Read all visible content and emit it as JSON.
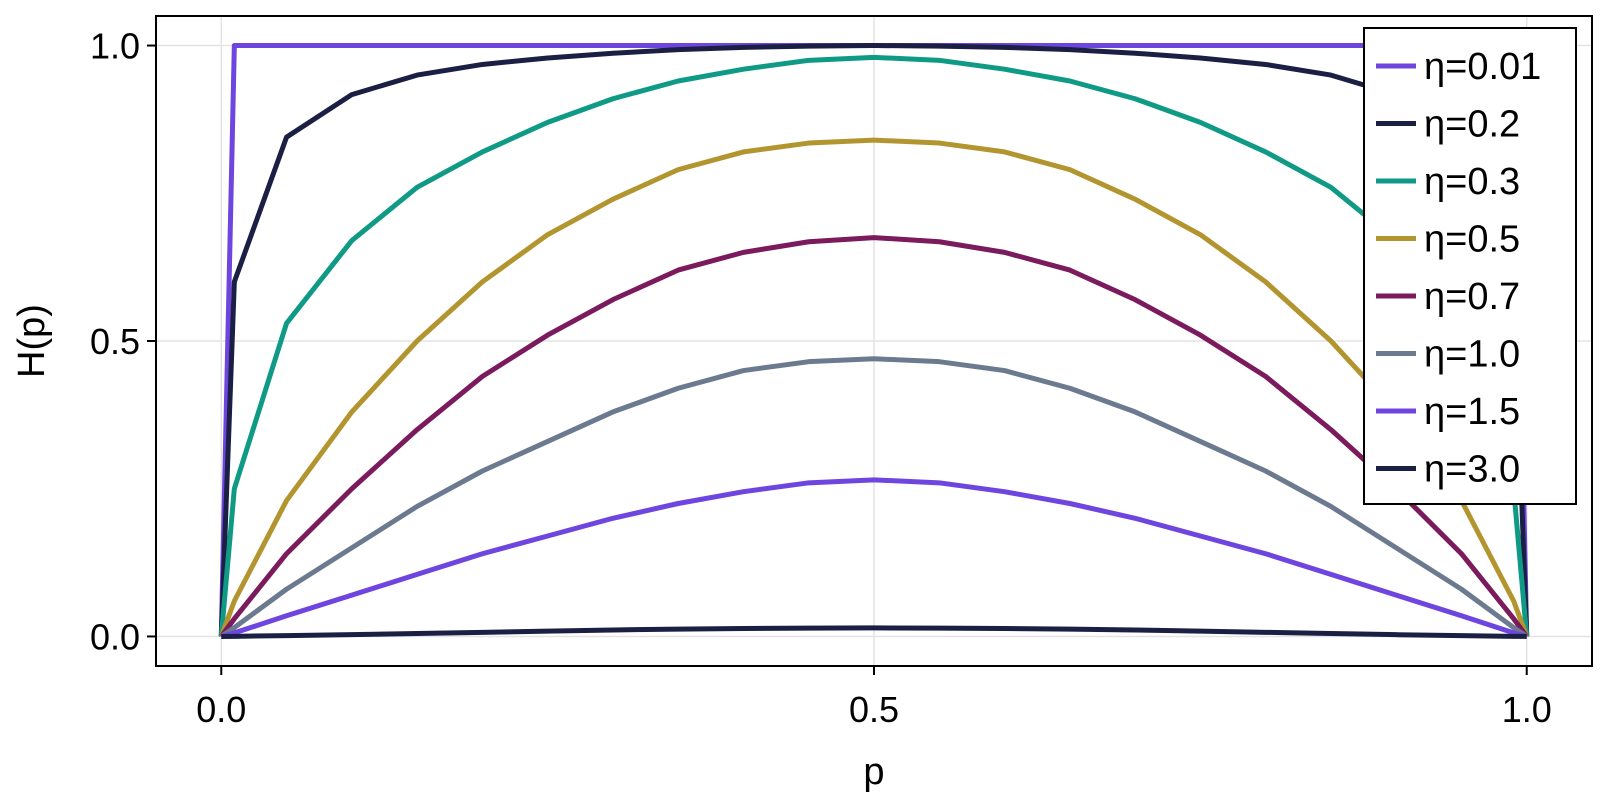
{
  "chart_data": {
    "type": "line",
    "title": "",
    "xlabel": "p",
    "ylabel": "H(p)",
    "xlim": [
      -0.05,
      1.05
    ],
    "ylim": [
      -0.05,
      1.05
    ],
    "x_ticks": [
      0.0,
      0.5,
      1.0
    ],
    "x_tick_labels": [
      "0.0",
      "0.5",
      "1.0"
    ],
    "y_ticks": [
      0.0,
      0.5,
      1.0
    ],
    "y_tick_labels": [
      "0.0",
      "0.5",
      "1.0"
    ],
    "grid": true,
    "legend_position": "top-right",
    "x": [
      0.0,
      0.01,
      0.05,
      0.1,
      0.15,
      0.2,
      0.25,
      0.3,
      0.35,
      0.4,
      0.45,
      0.5,
      0.55,
      0.6,
      0.65,
      0.7,
      0.75,
      0.8,
      0.85,
      0.9,
      0.95,
      0.99,
      1.0
    ],
    "series": [
      {
        "name": "η=0.01",
        "color": "#6f45e0",
        "values": [
          0.0,
          1.0,
          1.0,
          1.0,
          1.0,
          1.0,
          1.0,
          1.0,
          1.0,
          1.0,
          1.0,
          1.0,
          1.0,
          1.0,
          1.0,
          1.0,
          1.0,
          1.0,
          1.0,
          1.0,
          1.0,
          1.0,
          0.0
        ]
      },
      {
        "name": "η=0.2",
        "color": "#1b1f44",
        "values": [
          0.0,
          0.6,
          0.845,
          0.917,
          0.95,
          0.968,
          0.979,
          0.987,
          0.993,
          0.997,
          0.999,
          1.0,
          0.999,
          0.997,
          0.993,
          0.987,
          0.979,
          0.968,
          0.95,
          0.917,
          0.845,
          0.6,
          0.0
        ]
      },
      {
        "name": "η=0.3",
        "color": "#0f9a86",
        "values": [
          0.0,
          0.25,
          0.53,
          0.67,
          0.76,
          0.82,
          0.87,
          0.91,
          0.94,
          0.96,
          0.975,
          0.98,
          0.975,
          0.96,
          0.94,
          0.91,
          0.87,
          0.82,
          0.76,
          0.67,
          0.53,
          0.25,
          0.0
        ]
      },
      {
        "name": "η=0.5",
        "color": "#b39530",
        "values": [
          0.0,
          0.06,
          0.23,
          0.38,
          0.5,
          0.6,
          0.68,
          0.74,
          0.79,
          0.82,
          0.835,
          0.84,
          0.835,
          0.82,
          0.79,
          0.74,
          0.68,
          0.6,
          0.5,
          0.38,
          0.23,
          0.06,
          0.0
        ]
      },
      {
        "name": "η=0.7",
        "color": "#7b1a5c",
        "values": [
          0.0,
          0.03,
          0.14,
          0.25,
          0.35,
          0.44,
          0.51,
          0.57,
          0.62,
          0.65,
          0.668,
          0.675,
          0.668,
          0.65,
          0.62,
          0.57,
          0.51,
          0.44,
          0.35,
          0.25,
          0.14,
          0.03,
          0.0
        ]
      },
      {
        "name": "η=1.0",
        "color": "#6c7a90",
        "values": [
          0.0,
          0.015,
          0.08,
          0.15,
          0.22,
          0.28,
          0.33,
          0.38,
          0.42,
          0.45,
          0.465,
          0.47,
          0.465,
          0.45,
          0.42,
          0.38,
          0.33,
          0.28,
          0.22,
          0.15,
          0.08,
          0.015,
          0.0
        ]
      },
      {
        "name": "η=1.5",
        "color": "#6f45e0",
        "values": [
          0.0,
          0.006,
          0.035,
          0.07,
          0.105,
          0.14,
          0.17,
          0.2,
          0.225,
          0.245,
          0.26,
          0.265,
          0.26,
          0.245,
          0.225,
          0.2,
          0.17,
          0.14,
          0.105,
          0.07,
          0.035,
          0.006,
          0.0
        ]
      },
      {
        "name": "η=3.0",
        "color": "#1b1f44",
        "values": [
          0.0,
          0.0002,
          0.0015,
          0.003,
          0.005,
          0.007,
          0.009,
          0.011,
          0.0125,
          0.0135,
          0.014,
          0.0145,
          0.014,
          0.0135,
          0.0125,
          0.011,
          0.009,
          0.007,
          0.005,
          0.003,
          0.0015,
          0.0002,
          0.0
        ]
      }
    ]
  }
}
